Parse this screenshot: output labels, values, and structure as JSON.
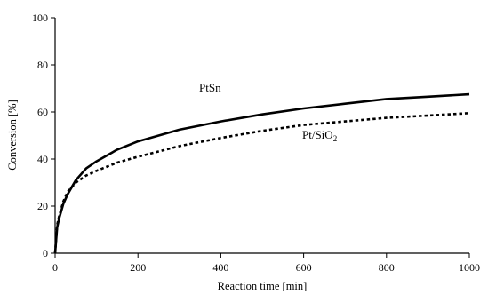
{
  "chart_data": {
    "type": "line",
    "xlabel": "Reaction time [min]",
    "ylabel": "Conversion [%]",
    "xlim": [
      0,
      1000
    ],
    "ylim": [
      0,
      100
    ],
    "xticks": [
      "0",
      "200",
      "400",
      "600",
      "800",
      "1000"
    ],
    "yticks": [
      "0",
      "20",
      "40",
      "60",
      "80",
      "100"
    ],
    "grid": false,
    "legend": "none",
    "series": [
      {
        "name": "PtSn",
        "style": "solid",
        "color": "#000000",
        "x": [
          0,
          5,
          10,
          20,
          30,
          50,
          75,
          100,
          150,
          200,
          300,
          400,
          500,
          600,
          700,
          800,
          900,
          1000
        ],
        "y": [
          0,
          11,
          15,
          21,
          25,
          31,
          36,
          39,
          44,
          47.5,
          52.5,
          56,
          59,
          61.5,
          63.5,
          65.5,
          66.5,
          67.5
        ]
      },
      {
        "name": "Pt/SiO2",
        "label_main": "Pt/SiO",
        "label_sub": "2",
        "style": "dotted",
        "color": "#000000",
        "x": [
          0,
          5,
          10,
          20,
          30,
          50,
          75,
          100,
          150,
          200,
          300,
          400,
          500,
          600,
          700,
          800,
          900,
          1000
        ],
        "y": [
          0,
          12,
          16,
          22,
          26,
          30,
          33,
          35,
          38.5,
          41,
          45.5,
          49,
          52,
          54.5,
          56,
          57.5,
          58.5,
          59.5
        ]
      }
    ]
  }
}
